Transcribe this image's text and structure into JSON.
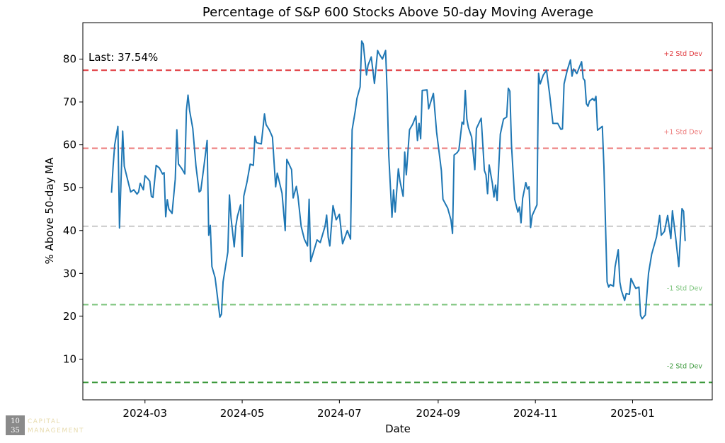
{
  "chart_data": {
    "type": "line",
    "title": "Percentage of S&P 600 Stocks Above 50-day Moving Average",
    "x_label": "Date",
    "y_label": "% Above 50-day MA",
    "annotation": "Last: 37.54%",
    "color": "#1f77b4",
    "xlim": [
      "2024-01-22",
      "2025-02-20"
    ],
    "xticks": [
      {
        "value": "2024-03-01",
        "label": "2024-03"
      },
      {
        "value": "2024-05-01",
        "label": "2024-05"
      },
      {
        "value": "2024-07-01",
        "label": "2024-07"
      },
      {
        "value": "2024-09-01",
        "label": "2024-09"
      },
      {
        "value": "2024-11-01",
        "label": "2024-11"
      },
      {
        "value": "2025-01-01",
        "label": "2025-01"
      }
    ],
    "ylim": [
      0.5,
      88.5
    ],
    "yticks": [
      10,
      20,
      30,
      40,
      50,
      60,
      70,
      80
    ],
    "reference_lines": [
      {
        "value": 77.4,
        "label": "+2 Std Dev",
        "color": "#e0393e"
      },
      {
        "value": 59.2,
        "label": "+1 Std Dev",
        "color": "#ec7a7a"
      },
      {
        "value": 41.0,
        "color": "#c8c8c8"
      },
      {
        "value": 22.7,
        "label": "-1 Std Dev",
        "color": "#7cc47c"
      },
      {
        "value": 4.56,
        "label": "-2 Std Dev",
        "color": "#3d9a3d"
      }
    ],
    "x": [
      "2024-02-09",
      "2024-02-10",
      "2024-02-11",
      "2024-02-13",
      "2024-02-14",
      "2024-02-15",
      "2024-02-16",
      "2024-02-17",
      "2024-02-19",
      "2024-02-21",
      "2024-02-23",
      "2024-02-25",
      "2024-02-26",
      "2024-02-27",
      "2024-02-29",
      "2024-03-01",
      "2024-03-03",
      "2024-03-04",
      "2024-03-05",
      "2024-03-06",
      "2024-03-08",
      "2024-03-10",
      "2024-03-12",
      "2024-03-13",
      "2024-03-14",
      "2024-03-15",
      "2024-03-16",
      "2024-03-18",
      "2024-03-20",
      "2024-03-21",
      "2024-03-22",
      "2024-03-24",
      "2024-03-26",
      "2024-03-27",
      "2024-03-28",
      "2024-03-29",
      "2024-03-31",
      "2024-04-02",
      "2024-04-04",
      "2024-04-05",
      "2024-04-07",
      "2024-04-09",
      "2024-04-10",
      "2024-04-11",
      "2024-04-12",
      "2024-04-14",
      "2024-04-15",
      "2024-04-17",
      "2024-04-18",
      "2024-04-19",
      "2024-04-22",
      "2024-04-23",
      "2024-04-24",
      "2024-04-26",
      "2024-04-27",
      "2024-04-28",
      "2024-04-30",
      "2024-05-01",
      "2024-05-02",
      "2024-05-04",
      "2024-05-06",
      "2024-05-08",
      "2024-05-09",
      "2024-05-10",
      "2024-05-13",
      "2024-05-15",
      "2024-05-16",
      "2024-05-18",
      "2024-05-20",
      "2024-05-22",
      "2024-05-23",
      "2024-05-26",
      "2024-05-28",
      "2024-05-29",
      "2024-06-01",
      "2024-06-02",
      "2024-06-04",
      "2024-06-05",
      "2024-06-07",
      "2024-06-09",
      "2024-06-11",
      "2024-06-12",
      "2024-06-13",
      "2024-06-15",
      "2024-06-17",
      "2024-06-19",
      "2024-06-22",
      "2024-06-23",
      "2024-06-24",
      "2024-06-25",
      "2024-06-27",
      "2024-06-29",
      "2024-07-01",
      "2024-07-03",
      "2024-07-06",
      "2024-07-08",
      "2024-07-09",
      "2024-07-11",
      "2024-07-12",
      "2024-07-14",
      "2024-07-15",
      "2024-07-16",
      "2024-07-18",
      "2024-07-19",
      "2024-07-21",
      "2024-07-23",
      "2024-07-25",
      "2024-07-26",
      "2024-07-28",
      "2024-07-30",
      "2024-07-31",
      "2024-08-01",
      "2024-08-03",
      "2024-08-04",
      "2024-08-05",
      "2024-08-07",
      "2024-08-08",
      "2024-08-10",
      "2024-08-11",
      "2024-08-12",
      "2024-08-14",
      "2024-08-16",
      "2024-08-18",
      "2024-08-19",
      "2024-08-20",
      "2024-08-21",
      "2024-08-22",
      "2024-08-25",
      "2024-08-26",
      "2024-08-29",
      "2024-08-31",
      "2024-09-03",
      "2024-09-04",
      "2024-09-07",
      "2024-09-09",
      "2024-09-10",
      "2024-09-11",
      "2024-09-13",
      "2024-09-14",
      "2024-09-16",
      "2024-09-17",
      "2024-09-18",
      "2024-09-19",
      "2024-09-20",
      "2024-09-22",
      "2024-09-24",
      "2024-09-25",
      "2024-09-28",
      "2024-09-30",
      "2024-10-01",
      "2024-10-02",
      "2024-10-03",
      "2024-10-05",
      "2024-10-06",
      "2024-10-07",
      "2024-10-08",
      "2024-10-10",
      "2024-10-12",
      "2024-10-14",
      "2024-10-15",
      "2024-10-16",
      "2024-10-17",
      "2024-10-19",
      "2024-10-21",
      "2024-10-22",
      "2024-10-23",
      "2024-10-24",
      "2024-10-26",
      "2024-10-27",
      "2024-10-28",
      "2024-10-29",
      "2024-10-30",
      "2024-11-02",
      "2024-11-03",
      "2024-11-04",
      "2024-11-06",
      "2024-11-08",
      "2024-11-10",
      "2024-11-12",
      "2024-11-14",
      "2024-11-15",
      "2024-11-17",
      "2024-11-18",
      "2024-11-19",
      "2024-11-21",
      "2024-11-23",
      "2024-11-24",
      "2024-11-25",
      "2024-11-27",
      "2024-11-30",
      "2024-12-01",
      "2024-12-02",
      "2024-12-03",
      "2024-12-04",
      "2024-12-05",
      "2024-12-07",
      "2024-12-08",
      "2024-12-09",
      "2024-12-10",
      "2024-12-13",
      "2024-12-14",
      "2024-12-16",
      "2024-12-17",
      "2024-12-18",
      "2024-12-20",
      "2024-12-21",
      "2024-12-23",
      "2024-12-24",
      "2024-12-25",
      "2024-12-27",
      "2024-12-28",
      "2024-12-30",
      "2024-12-31",
      "2025-01-02",
      "2025-01-03",
      "2025-01-05",
      "2025-01-06",
      "2025-01-07",
      "2025-01-09",
      "2025-01-11",
      "2025-01-13",
      "2025-01-16",
      "2025-01-18",
      "2025-01-19",
      "2025-01-21",
      "2025-01-23",
      "2025-01-25",
      "2025-01-26",
      "2025-01-28",
      "2025-01-30",
      "2025-02-01",
      "2025-02-02",
      "2025-02-03"
    ],
    "values": [
      48.8,
      55,
      60,
      64.3,
      40.6,
      52,
      63.2,
      55,
      52,
      49,
      49.5,
      48.5,
      49,
      51,
      49.5,
      52.8,
      52,
      51.5,
      48,
      47.7,
      55.2,
      54.6,
      53.2,
      53.5,
      43.2,
      47.2,
      45,
      44,
      52,
      63.5,
      55.5,
      54.5,
      53.2,
      68,
      71.6,
      68,
      63.8,
      55,
      49,
      49.3,
      55,
      61,
      38.9,
      41.2,
      31.6,
      29,
      26,
      19.8,
      20.5,
      28,
      35,
      48.3,
      43,
      36.2,
      41,
      43.3,
      46,
      34,
      48,
      51.3,
      55.5,
      55.2,
      62,
      60.5,
      60.2,
      67.2,
      64.7,
      63.5,
      61.8,
      50.2,
      53.4,
      48.7,
      40,
      56.6,
      54.2,
      47.6,
      50.3,
      48,
      41,
      38,
      36.4,
      47.3,
      32.8,
      35.3,
      37.8,
      37.2,
      41,
      43.6,
      38.4,
      36.4,
      45.8,
      42.5,
      43.8,
      36.9,
      40,
      38,
      63.5,
      68,
      70.8,
      73.5,
      84.2,
      83.5,
      76.3,
      78.6,
      80.5,
      74.3,
      82,
      81.2,
      80,
      82,
      72,
      57.5,
      43.1,
      49.5,
      44.3,
      54.4,
      51.6,
      48,
      58.3,
      53,
      63.5,
      64.8,
      66.7,
      61,
      65,
      61.4,
      72.7,
      72.8,
      68.4,
      72,
      63,
      54,
      47.3,
      45.2,
      42.5,
      39.3,
      57.6,
      58.2,
      58.8,
      65.3,
      64.8,
      72.7,
      66,
      64,
      61.8,
      54.2,
      63.8,
      66.2,
      54,
      53,
      48.6,
      55.3,
      51,
      47.8,
      50.6,
      47,
      62.5,
      66,
      66.5,
      73.2,
      72.5,
      60,
      47.3,
      44.3,
      45.5,
      41.8,
      47.5,
      51.2,
      49.7,
      50.2,
      40.7,
      43.5,
      46,
      76.7,
      74.2,
      76.3,
      77.4,
      71.6,
      65,
      65,
      65,
      63.6,
      63.7,
      74.2,
      77.4,
      79.8,
      76,
      77.7,
      76.6,
      79.4,
      75.5,
      75,
      69.6,
      69,
      70.2,
      70.8,
      70.3,
      71.3,
      63.4,
      64.3,
      55,
      28,
      26.8,
      27.4,
      27,
      31.5,
      35.5,
      28,
      26,
      23.7,
      25.3,
      25.1,
      28.8,
      27.2,
      26.5,
      26.8,
      20.2,
      19.4,
      20.3,
      30,
      34.5,
      38.5,
      43.5,
      38.9,
      39.8,
      43.5,
      38.1,
      44.6,
      38.5,
      31.6,
      45.1,
      44.5,
      37.54
    ]
  },
  "logo": {
    "top": "10",
    "bottom": "35",
    "line1": "CAPITAL",
    "line2": "MANAGEMENT"
  }
}
